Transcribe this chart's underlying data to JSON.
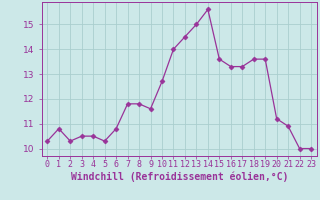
{
  "x": [
    0,
    1,
    2,
    3,
    4,
    5,
    6,
    7,
    8,
    9,
    10,
    11,
    12,
    13,
    14,
    15,
    16,
    17,
    18,
    19,
    20,
    21,
    22,
    23
  ],
  "y": [
    10.3,
    10.8,
    10.3,
    10.5,
    10.5,
    10.3,
    10.8,
    11.8,
    11.8,
    11.6,
    12.7,
    14.0,
    14.5,
    15.0,
    15.6,
    13.6,
    13.3,
    13.3,
    13.6,
    13.6,
    11.2,
    10.9,
    10.0,
    10.0
  ],
  "line_color": "#993399",
  "marker": "D",
  "marker_size": 2.5,
  "bg_color": "#cce8e8",
  "grid_color": "#aacece",
  "xlabel": "Windchill (Refroidissement éolien,°C)",
  "text_color": "#993399",
  "ylabel_ticks": [
    10,
    11,
    12,
    13,
    14,
    15
  ],
  "xtick_labels": [
    "0",
    "1",
    "2",
    "3",
    "4",
    "5",
    "6",
    "7",
    "8",
    "9",
    "10",
    "11",
    "12",
    "13",
    "14",
    "15",
    "16",
    "17",
    "18",
    "19",
    "20",
    "21",
    "22",
    "23"
  ],
  "ylim": [
    9.7,
    15.9
  ],
  "xlim": [
    -0.5,
    23.5
  ],
  "tick_fontsize": 6.5,
  "xlabel_fontsize": 7.0
}
